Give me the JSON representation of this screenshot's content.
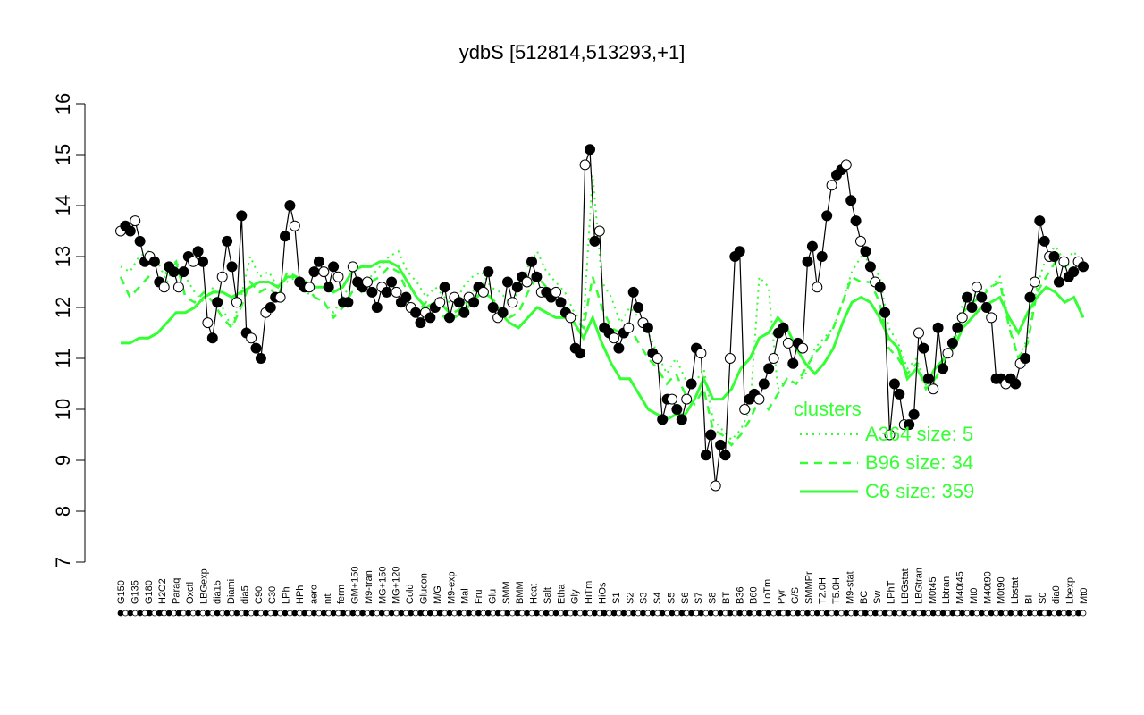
{
  "chart_data": {
    "type": "line",
    "title": "ydbS [512814,513293,+1]",
    "xlabel": "",
    "ylabel": "",
    "ylim": [
      7,
      16
    ],
    "yticks": [
      7,
      8,
      9,
      10,
      11,
      12,
      13,
      14,
      15,
      16
    ],
    "grid": false,
    "legend_position": "bottom-right",
    "colors": {
      "points": "#000000",
      "cluster_lines": "#33ff33"
    },
    "x_tick_labels": [
      "G150",
      "G135",
      "G180",
      "H2O2",
      "Paraq",
      "Oxctl",
      "LBGexp",
      "dia15",
      "Diami",
      "dia5",
      "C90",
      "C30",
      "LPh",
      "HPh",
      "aero",
      "nit",
      "ferm",
      "GM+150",
      "M9-tran",
      "MG+150",
      "MG+120",
      "Cold",
      "Glucon",
      "M/G",
      "M9-exp",
      "Mal",
      "Fru",
      "Glu",
      "SMM",
      "BMM",
      "Heat",
      "Salt",
      "Etha",
      "Gly",
      "HiTm",
      "HiOs",
      "S1",
      "S2",
      "S3",
      "S4",
      "S5",
      "S6",
      "S7",
      "S8",
      "BT",
      "B36",
      "B60",
      "LoTm",
      "Pyr",
      "G/S",
      "SMMPr",
      "T2.0H",
      "T5.0H",
      "M9-stat",
      "BC",
      "Sw",
      "LPhT",
      "LBGstat",
      "LBGtran",
      "M0t45",
      "Lbtran",
      "M40t45",
      "Mt0",
      "M40t90",
      "M0t90",
      "Lbstat",
      "BI",
      "S0",
      "dia0",
      "Lbexp",
      "Mt0"
    ],
    "points": [
      13.5,
      13.6,
      13.5,
      13.7,
      13.3,
      12.9,
      13.0,
      12.9,
      12.5,
      12.4,
      12.8,
      12.7,
      12.4,
      12.7,
      13.0,
      12.9,
      13.1,
      12.9,
      11.7,
      11.4,
      12.1,
      12.6,
      13.3,
      12.8,
      12.1,
      13.8,
      11.5,
      11.4,
      11.2,
      11.0,
      11.9,
      12.0,
      12.2,
      12.2,
      13.4,
      14.0,
      13.6,
      12.5,
      12.4,
      12.4,
      12.7,
      12.9,
      12.7,
      12.4,
      12.8,
      12.6,
      12.1,
      12.1,
      12.8,
      12.5,
      12.4,
      12.5,
      12.3,
      12.0,
      12.4,
      12.3,
      12.5,
      12.3,
      12.1,
      12.2,
      12.0,
      11.9,
      11.7,
      11.9,
      11.8,
      12.0,
      12.1,
      12.4,
      11.8,
      12.2,
      12.1,
      11.9,
      12.2,
      12.1,
      12.4,
      12.3,
      12.7,
      12.0,
      11.8,
      11.9,
      12.5,
      12.1,
      12.4,
      12.6,
      12.5,
      12.9,
      12.6,
      12.3,
      12.3,
      12.2,
      12.3,
      12.1,
      11.9,
      11.8,
      11.2,
      11.1,
      14.8,
      15.1,
      13.3,
      13.5,
      11.6,
      11.5,
      11.4,
      11.2,
      11.5,
      11.6,
      12.3,
      12.0,
      11.7,
      11.6,
      11.1,
      11.0,
      9.8,
      10.2,
      10.2,
      10.0,
      9.8,
      10.2,
      10.5,
      11.2,
      11.1,
      9.1,
      9.5,
      8.5,
      9.3,
      9.1,
      11.0,
      13.0,
      13.1,
      10.0,
      10.2,
      10.3,
      10.2,
      10.5,
      10.8,
      11.0,
      11.5,
      11.6,
      11.3,
      10.9,
      11.3,
      11.2,
      12.9,
      13.2,
      12.4,
      13.0,
      13.8,
      14.4,
      14.6,
      14.7,
      14.8,
      14.1,
      13.7,
      13.3,
      13.1,
      12.8,
      12.5,
      12.4,
      11.9,
      9.5,
      10.5,
      10.3,
      9.7,
      9.7,
      9.9,
      11.5,
      11.2,
      10.6,
      10.4,
      11.6,
      10.8,
      11.1,
      11.3,
      11.6,
      11.8,
      12.2,
      12.0,
      12.4,
      12.2,
      12.0,
      11.8,
      10.6,
      10.6,
      10.5,
      10.6,
      10.5,
      10.9,
      11.0,
      12.2,
      12.5,
      13.7,
      13.3,
      13.0,
      13.0,
      12.5,
      12.9,
      12.6,
      12.7,
      12.9,
      12.8
    ],
    "series": [
      {
        "name": "A364 size: 5",
        "style": "dotted",
        "values": [
          12.8,
          12.7,
          13.0,
          13.1,
          12.9,
          12.5,
          12.9,
          12.6,
          12.3,
          12.1,
          12.4,
          12.0,
          11.6,
          12.2,
          13.0,
          12.6,
          12.7,
          12.4,
          12.5,
          12.6,
          12.3,
          12.2,
          12.1,
          11.9,
          12.2,
          12.5,
          12.3,
          12.6,
          12.8,
          13.0,
          13.1,
          12.7,
          12.5,
          12.2,
          12.4,
          12.2,
          12.0,
          12.4,
          12.6,
          12.7,
          12.4,
          12.3,
          12.1,
          12.3,
          12.8,
          13.1,
          12.7,
          12.5,
          12.3,
          11.9,
          11.7,
          14.6,
          12.5,
          12.2,
          11.7,
          12.0,
          11.8,
          11.5,
          11.1,
          10.7,
          11.0,
          10.6,
          10.5,
          10.8,
          9.8,
          9.6,
          9.4,
          9.6,
          10.0,
          12.6,
          12.4,
          10.4,
          10.6,
          10.5,
          10.7,
          11.2,
          11.4,
          11.6,
          12.1,
          12.7,
          13.0,
          12.9,
          12.6,
          11.6,
          11.3,
          10.8,
          11.0,
          10.4,
          10.5,
          11.0,
          11.4,
          12.1,
          12.2,
          12.3,
          12.4,
          12.6,
          11.7,
          11.0,
          11.4,
          12.4,
          13.0,
          13.2,
          12.9,
          13.1,
          12.8
        ]
      },
      {
        "name": "B96 size: 34",
        "style": "dashed",
        "values": [
          12.6,
          12.2,
          12.4,
          12.6,
          12.5,
          12.7,
          12.9,
          12.2,
          12.1,
          12.3,
          12.1,
          11.8,
          11.6,
          12.0,
          12.5,
          12.3,
          12.4,
          12.2,
          12.7,
          12.6,
          12.4,
          12.2,
          12.1,
          11.8,
          12.0,
          12.3,
          12.4,
          12.5,
          12.6,
          12.8,
          12.7,
          12.3,
          11.9,
          12.1,
          12.0,
          11.8,
          11.9,
          12.0,
          12.3,
          12.5,
          12.2,
          12.0,
          11.8,
          11.9,
          12.3,
          12.6,
          12.4,
          12.2,
          12.0,
          11.8,
          11.6,
          12.6,
          12.0,
          11.6,
          11.5,
          11.6,
          11.3,
          11.0,
          10.8,
          10.5,
          10.7,
          10.3,
          10.1,
          10.4,
          9.6,
          9.5,
          9.3,
          9.5,
          9.8,
          10.2,
          10.0,
          10.3,
          10.6,
          10.5,
          10.8,
          11.1,
          11.3,
          11.6,
          12.1,
          12.6,
          12.5,
          12.5,
          12.1,
          11.2,
          11.0,
          10.7,
          10.9,
          10.4,
          10.6,
          10.9,
          11.3,
          11.9,
          12.1,
          12.2,
          12.4,
          12.5,
          11.6,
          11.0,
          11.3,
          12.3,
          12.6,
          12.9,
          12.8,
          12.9,
          12.7
        ]
      },
      {
        "name": "C6 size: 359",
        "style": "solid",
        "values": [
          11.3,
          11.3,
          11.4,
          11.4,
          11.5,
          11.7,
          11.9,
          11.9,
          12.0,
          12.2,
          12.3,
          12.3,
          12.2,
          12.3,
          12.4,
          12.5,
          12.5,
          12.4,
          12.6,
          12.6,
          12.5,
          12.4,
          12.4,
          12.3,
          12.4,
          12.7,
          12.8,
          12.8,
          12.9,
          12.9,
          12.8,
          12.5,
          12.2,
          12.0,
          12.1,
          12.0,
          11.8,
          11.9,
          12.1,
          12.3,
          12.2,
          11.9,
          11.7,
          11.6,
          11.8,
          12.0,
          11.9,
          11.8,
          11.8,
          11.7,
          11.4,
          11.8,
          11.3,
          10.9,
          10.6,
          10.6,
          10.3,
          10.0,
          9.9,
          9.8,
          9.9,
          9.9,
          10.2,
          10.6,
          10.2,
          10.2,
          10.4,
          10.8,
          11.0,
          11.4,
          11.5,
          11.8,
          11.6,
          11.2,
          10.9,
          10.7,
          10.9,
          11.2,
          11.7,
          12.1,
          12.2,
          12.1,
          11.8,
          11.4,
          11.2,
          10.6,
          10.8,
          10.5,
          10.8,
          11.0,
          11.2,
          11.6,
          11.8,
          12.0,
          12.1,
          12.2,
          11.8,
          11.5,
          11.9,
          12.2,
          12.4,
          12.3,
          12.1,
          12.2,
          11.8
        ]
      }
    ]
  }
}
